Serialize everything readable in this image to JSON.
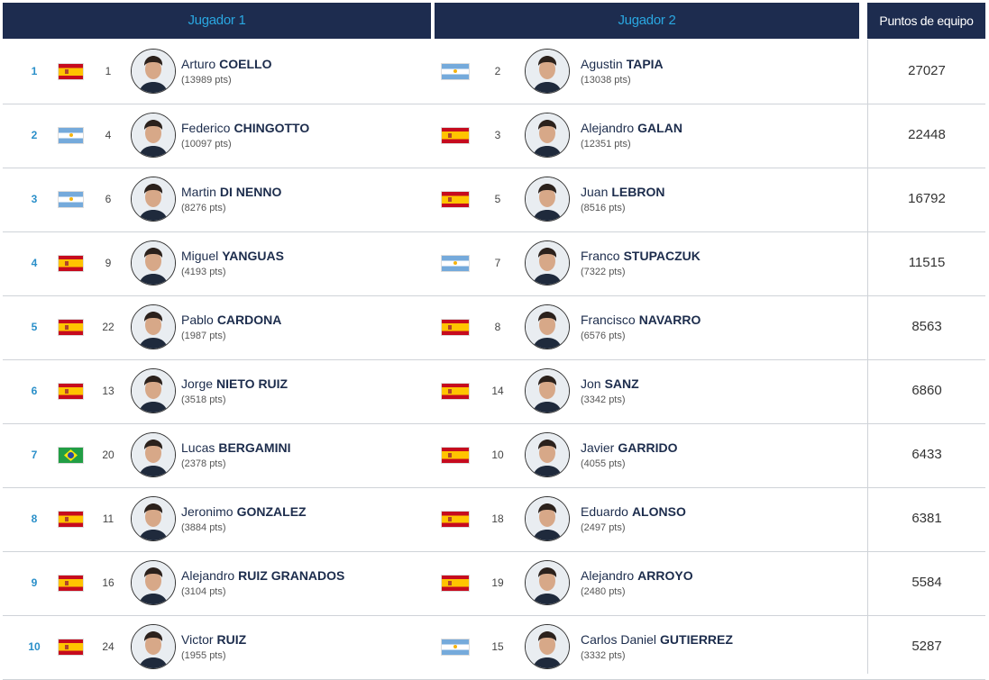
{
  "header": {
    "columns": [
      "Jugador 1",
      "Jugador 2",
      "Puntos de equipo"
    ]
  },
  "rows": [
    {
      "rank": 1,
      "player1": {
        "ranking": 1,
        "first_name": "Arturo",
        "last_name": "COELLO",
        "points": "(13989 pts)"
      },
      "player2": {
        "ranking": 2,
        "first_name": "Agustin",
        "last_name": "TAPIA",
        "points": "(13038 pts)"
      },
      "team_points": 27027
    },
    {
      "rank": 2,
      "player1": {
        "ranking": 4,
        "first_name": "Federico",
        "last_name": "CHINGOTTO",
        "points": "(10097 pts)"
      },
      "player2": {
        "ranking": 3,
        "first_name": "Alejandro",
        "last_name": "GALAN",
        "points": "(12351 pts)"
      },
      "team_points": 22448
    },
    {
      "rank": 3,
      "player1": {
        "ranking": 6,
        "first_name": "Martin",
        "last_name": "DI NENNO",
        "points": "(8276 pts)"
      },
      "player2": {
        "ranking": 5,
        "first_name": "Juan",
        "last_name": "LEBRON",
        "points": "(8516 pts)"
      },
      "team_points": 16792
    },
    {
      "rank": 4,
      "player1": {
        "ranking": 9,
        "first_name": "Miguel",
        "last_name": "YANGUAS",
        "points": "(4193 pts)"
      },
      "player2": {
        "ranking": 7,
        "first_name": "Franco",
        "last_name": "STUPACZUK",
        "points": "(7322 pts)"
      },
      "team_points": 11515
    },
    {
      "rank": 5,
      "player1": {
        "ranking": 22,
        "first_name": "Pablo",
        "last_name": "CARDONA",
        "points": "(1987 pts)"
      },
      "player2": {
        "ranking": 8,
        "first_name": "Francisco",
        "last_name": "NAVARRO",
        "points": "(6576 pts)"
      },
      "team_points": 8563
    },
    {
      "rank": 6,
      "player1": {
        "ranking": 13,
        "first_name": "Jorge",
        "last_name": "NIETO RUIZ",
        "points": "(3518 pts)"
      },
      "player2": {
        "ranking": 14,
        "first_name": "Jon",
        "last_name": "SANZ",
        "points": "(3342 pts)"
      },
      "team_points": 6860
    },
    {
      "rank": 7,
      "player1": {
        "ranking": 20,
        "first_name": "Lucas",
        "last_name": "BERGAMINI",
        "points": "(2378 pts)"
      },
      "player2": {
        "ranking": 10,
        "first_name": "Javier",
        "last_name": "GARRIDO",
        "points": "(4055 pts)"
      },
      "team_points": 6433
    },
    {
      "rank": 8,
      "player1": {
        "ranking": 11,
        "first_name": "Jeronimo",
        "last_name": "GONZALEZ",
        "points": "(3884 pts)"
      },
      "player2": {
        "ranking": 18,
        "first_name": "Eduardo",
        "last_name": "ALONSO",
        "points": "(2497 pts)"
      },
      "team_points": 6381
    },
    {
      "rank": 9,
      "player1": {
        "ranking": 16,
        "first_name": "Alejandro",
        "last_name": "RUIZ GRANADOS",
        "points": "(3104 pts)"
      },
      "player2": {
        "ranking": 19,
        "first_name": "Alejandro",
        "last_name": "ARROYO",
        "points": "(2480 pts)"
      },
      "team_points": 5584
    },
    {
      "rank": 10,
      "player1": {
        "ranking": 24,
        "first_name": "Victor",
        "last_name": "RUIZ",
        "points": "(1955 pts)"
      },
      "player2": {
        "ranking": 15,
        "first_name": "Carlos Daniel",
        "last_name": "GUTIERREZ",
        "points": "(3332 pts)"
      },
      "team_points": 5287
    }
  ]
}
